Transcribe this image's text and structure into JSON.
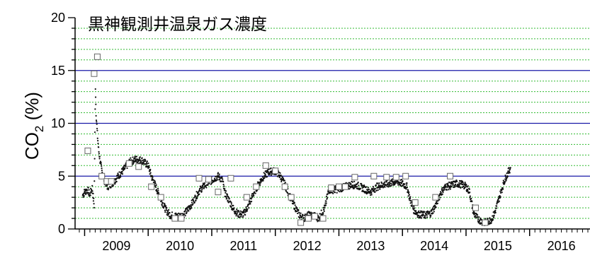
{
  "chart_data": {
    "type": "scatter",
    "title": "黒神観測井温泉ガス濃度",
    "ylabel": "CO",
    "ylabel_subscript": "2",
    "ylabel_unit": "(%)",
    "xlabel": "",
    "xlim": [
      2008.85,
      2016.95
    ],
    "ylim": [
      0,
      20
    ],
    "ytick_labels": [
      "0",
      "5",
      "10",
      "15",
      "20"
    ],
    "xtick_labels": [
      "2009",
      "2010",
      "2011",
      "2012",
      "2013",
      "2014",
      "2015",
      "2016"
    ],
    "grid": "dotted green every 1% minor, solid blue at 5, 10, 15",
    "colors": {
      "major_grid": "#1a1aa8",
      "minor_grid": "#33bb33",
      "points": "#111111"
    },
    "series": [
      {
        "marker": "dot",
        "continuous_points": [
          [
            2008.97,
            3.2
          ],
          [
            2009.0,
            3.5
          ],
          [
            2009.05,
            3.7
          ],
          [
            2009.08,
            3.2
          ],
          [
            2009.12,
            3.9
          ],
          [
            2009.15,
            2.2
          ],
          [
            2009.17,
            13.5
          ],
          [
            2009.18,
            11.0
          ],
          [
            2009.2,
            9.0
          ],
          [
            2009.22,
            7.5
          ],
          [
            2009.25,
            6.2
          ],
          [
            2009.28,
            5.2
          ],
          [
            2009.32,
            4.5
          ],
          [
            2009.36,
            4.0
          ],
          [
            2009.4,
            4.2
          ],
          [
            2009.45,
            4.4
          ],
          [
            2009.5,
            4.8
          ],
          [
            2009.6,
            5.5
          ],
          [
            2009.7,
            6.3
          ],
          [
            2009.8,
            6.6
          ],
          [
            2009.9,
            6.5
          ],
          [
            2010.0,
            6.0
          ],
          [
            2010.05,
            5.0
          ],
          [
            2010.12,
            4.0
          ],
          [
            2010.2,
            2.8
          ],
          [
            2010.28,
            1.8
          ],
          [
            2010.35,
            1.3
          ],
          [
            2010.45,
            1.2
          ],
          [
            2010.55,
            1.3
          ],
          [
            2010.62,
            1.8
          ],
          [
            2010.7,
            2.5
          ],
          [
            2010.8,
            3.6
          ],
          [
            2010.9,
            4.2
          ],
          [
            2011.0,
            4.6
          ],
          [
            2011.1,
            5.0
          ],
          [
            2011.17,
            4.6
          ],
          [
            2011.2,
            3.5
          ],
          [
            2011.28,
            2.6
          ],
          [
            2011.35,
            1.8
          ],
          [
            2011.42,
            1.4
          ],
          [
            2011.5,
            1.4
          ],
          [
            2011.58,
            2.2
          ],
          [
            2011.66,
            3.4
          ],
          [
            2011.74,
            4.3
          ],
          [
            2011.82,
            5.0
          ],
          [
            2011.9,
            5.4
          ],
          [
            2012.0,
            5.5
          ],
          [
            2012.08,
            5.0
          ],
          [
            2012.15,
            4.2
          ],
          [
            2012.22,
            3.2
          ],
          [
            2012.3,
            2.2
          ],
          [
            2012.38,
            1.3
          ],
          [
            2012.45,
            1.0
          ],
          [
            2012.52,
            1.3
          ],
          [
            2012.6,
            1.3
          ],
          [
            2012.68,
            1.0
          ],
          [
            2012.72,
            1.4
          ],
          [
            2012.78,
            2.0
          ],
          [
            2012.84,
            3.7
          ],
          [
            2012.9,
            3.7
          ],
          [
            2013.0,
            3.8
          ],
          [
            2013.1,
            4.0
          ],
          [
            2013.2,
            4.2
          ],
          [
            2013.3,
            4.1
          ],
          [
            2013.4,
            3.8
          ],
          [
            2013.5,
            3.5
          ],
          [
            2013.6,
            4.0
          ],
          [
            2013.7,
            4.2
          ],
          [
            2013.8,
            4.3
          ],
          [
            2013.9,
            4.5
          ],
          [
            2014.0,
            4.3
          ],
          [
            2014.07,
            4.0
          ],
          [
            2014.12,
            2.8
          ],
          [
            2014.18,
            1.8
          ],
          [
            2014.25,
            1.4
          ],
          [
            2014.35,
            1.3
          ],
          [
            2014.45,
            1.5
          ],
          [
            2014.52,
            2.2
          ],
          [
            2014.6,
            3.4
          ],
          [
            2014.68,
            4.0
          ],
          [
            2014.75,
            4.1
          ],
          [
            2014.85,
            4.3
          ],
          [
            2014.95,
            4.2
          ],
          [
            2015.0,
            4.0
          ],
          [
            2015.05,
            3.6
          ],
          [
            2015.12,
            1.5
          ],
          [
            2015.18,
            1.0
          ],
          [
            2015.25,
            0.7
          ],
          [
            2015.32,
            0.6
          ],
          [
            2015.4,
            0.9
          ],
          [
            2015.45,
            1.5
          ],
          [
            2015.5,
            2.5
          ],
          [
            2015.55,
            3.5
          ],
          [
            2015.6,
            4.5
          ],
          [
            2015.65,
            5.2
          ],
          [
            2015.7,
            5.8
          ]
        ]
      },
      {
        "marker": "open-square",
        "points": [
          [
            2009.05,
            7.4
          ],
          [
            2009.15,
            14.7
          ],
          [
            2009.2,
            16.3
          ],
          [
            2009.27,
            5.0
          ],
          [
            2009.35,
            4.5
          ],
          [
            2009.42,
            4.5
          ],
          [
            2009.7,
            6.2
          ],
          [
            2009.85,
            5.9
          ],
          [
            2010.05,
            4.0
          ],
          [
            2010.2,
            3.0
          ],
          [
            2010.42,
            1.0
          ],
          [
            2010.52,
            1.0
          ],
          [
            2010.8,
            4.8
          ],
          [
            2010.95,
            4.7
          ],
          [
            2011.1,
            3.5
          ],
          [
            2011.3,
            4.8
          ],
          [
            2011.55,
            3.0
          ],
          [
            2011.7,
            4.0
          ],
          [
            2011.85,
            6.0
          ],
          [
            2012.0,
            5.5
          ],
          [
            2012.15,
            4.0
          ],
          [
            2012.25,
            3.0
          ],
          [
            2012.4,
            0.6
          ],
          [
            2012.52,
            1.0
          ],
          [
            2012.62,
            1.2
          ],
          [
            2012.75,
            1.0
          ],
          [
            2012.88,
            3.9
          ],
          [
            2013.0,
            4.0
          ],
          [
            2013.1,
            4.0
          ],
          [
            2013.25,
            4.9
          ],
          [
            2013.55,
            5.0
          ],
          [
            2013.75,
            4.9
          ],
          [
            2013.9,
            4.9
          ],
          [
            2014.05,
            5.0
          ],
          [
            2014.2,
            2.5
          ],
          [
            2014.52,
            3.0
          ],
          [
            2014.75,
            5.0
          ],
          [
            2015.15,
            2.0
          ],
          [
            2015.3,
            0.6
          ]
        ]
      }
    ]
  }
}
